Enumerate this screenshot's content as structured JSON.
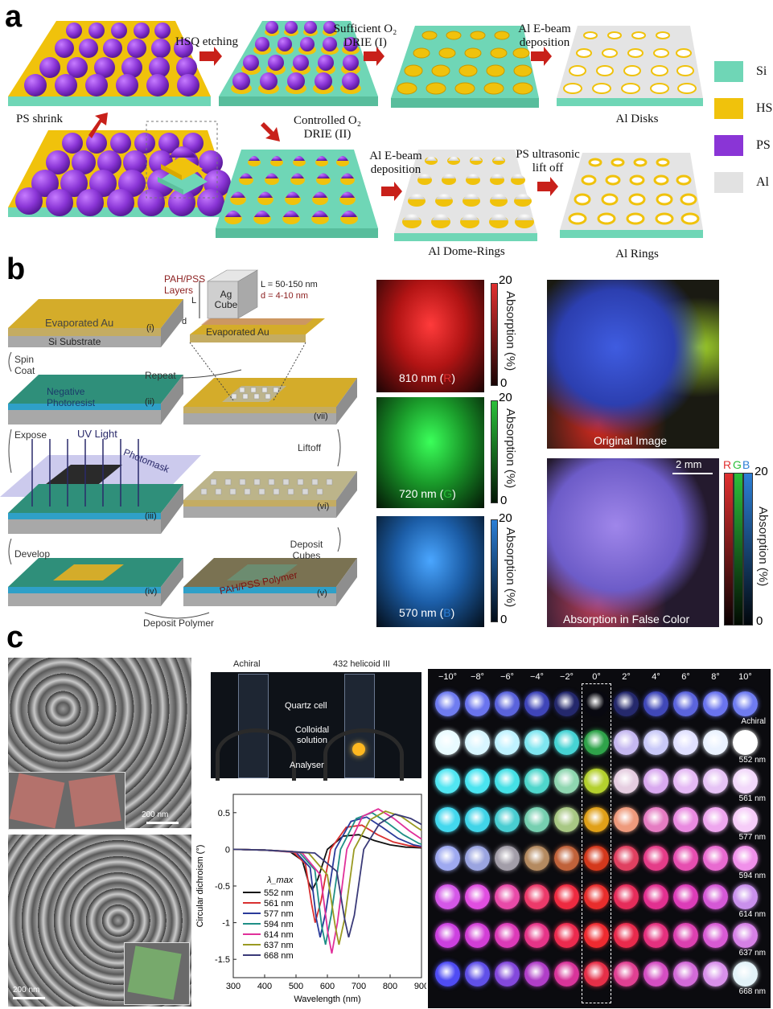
{
  "panel_a": {
    "label": "a",
    "steps": {
      "hsq_etching": "HSQ etching",
      "sufficient": "Sufficient O₂ DRIE (I)",
      "al_ebeam_top": "Al E-beam deposition",
      "ps_shrink": "PS shrink",
      "controlled": "Controlled O₂ DRIE (II)",
      "al_ebeam_bottom": "Al E-beam deposition",
      "ps_liftoff": "PS ultrasonic lift off"
    },
    "results": {
      "al_disks": "Al Disks",
      "al_dome_rings": "Al Dome-Rings",
      "al_rings": "Al Rings"
    },
    "legend": [
      {
        "label": "Si",
        "color": "#6fd6b6"
      },
      {
        "label": "HSQ",
        "color": "#f0c20c"
      },
      {
        "label": "PS",
        "color": "#8a35d6"
      },
      {
        "label": "Al",
        "color": "#e2e2e2"
      }
    ]
  },
  "panel_b": {
    "label": "b",
    "steps": {
      "i_top": "Evaporated Au",
      "i_bottom": "Si Substrate",
      "i_num": "(i)",
      "spin_coat": "Spin Coat",
      "ii_text": "Negative Photoresist",
      "ii_num": "(ii)",
      "expose": "Expose",
      "uv_light": "UV Light",
      "photomask": "Photomask",
      "iii_num": "(iii)",
      "develop": "Develop",
      "iv_num": "(iv)",
      "deposit_polymer": "Deposit Polymer",
      "v_text": "PAH/PSS Polymer",
      "v_num": "(v)",
      "deposit_cubes": "Deposit Cubes",
      "vi_num": "(vi)",
      "liftoff": "Liftoff",
      "vii_num": "(vii)",
      "repeat": "Repeat",
      "pah_layers": "PAH/PSS Layers",
      "ag_cube": "Ag Cube",
      "L_eq": "L = 50-150 nm",
      "d_eq": "d = 4-10 nm",
      "L": "L",
      "d": "d",
      "evaporated_au_zoom": "Evaporated Au"
    },
    "images": [
      {
        "caption": "810 nm (",
        "band": "R",
        "color": "#e03030"
      },
      {
        "caption": "720 nm (",
        "band": "G",
        "color": "#2bbf3a"
      },
      {
        "caption": "570 nm (",
        "band": "B",
        "color": "#2c7fd6"
      }
    ],
    "colorbar": {
      "max": "20",
      "min": "0",
      "label": "Absorption (%)"
    },
    "original_image": "Original Image",
    "false_color": "Absorption in False Color",
    "scale": "2 mm",
    "rgb": [
      "R",
      "G",
      "B"
    ]
  },
  "panel_c": {
    "label": "c",
    "sem_scale_top": "200 nm",
    "sem_scale_bottom": "200 nm",
    "photo": {
      "achiral": "Achiral",
      "helicoid": "432 helicoid III",
      "quartz_cell": "Quartz cell",
      "colloidal": "Colloidal solution",
      "analyser": "Analyser"
    },
    "grid": {
      "angles": [
        "−10°",
        "−8°",
        "−6°",
        "−4°",
        "−2°",
        "0°",
        "2°",
        "4°",
        "6°",
        "8°",
        "10°"
      ],
      "rows": [
        {
          "label": "Achiral",
          "colors": [
            "#6f7cf0",
            "#6a74ee",
            "#5a63dc",
            "#3f45b8",
            "#24286c",
            "#080810",
            "#25296c",
            "#4048b8",
            "#5b64dc",
            "#6a74ee",
            "#6f7cf0"
          ]
        },
        {
          "label": "552 nm",
          "colors": [
            "#e9fbff",
            "#d8f6ff",
            "#bff2ff",
            "#7fe6f0",
            "#46d3d4",
            "#2fa34a",
            "#c5b8f0",
            "#c9c9f8",
            "#e0e0ff",
            "#eaf2ff",
            "#ffffff"
          ]
        },
        {
          "label": "561 nm",
          "colors": [
            "#52e6f2",
            "#4ae4f0",
            "#45e0e6",
            "#4fd6cc",
            "#8fd6b0",
            "#b4d02e",
            "#e5cde0",
            "#d9a9ef",
            "#e5b9f4",
            "#e6c3f5",
            "#f2d8fa"
          ]
        },
        {
          "label": "577 nm",
          "colors": [
            "#43d8ee",
            "#41d4e8",
            "#49cdd2",
            "#76cfb0",
            "#a8c784",
            "#e0a018",
            "#ee9a7c",
            "#e57cc2",
            "#e98ae0",
            "#eea6ee",
            "#f6ccf8"
          ]
        },
        {
          "label": "594 nm",
          "colors": [
            "#9ea9f0",
            "#9aa4e0",
            "#a29da8",
            "#b48a60",
            "#c0623a",
            "#d4381c",
            "#e04060",
            "#e43c88",
            "#e64eb0",
            "#e86ad0",
            "#f090ea"
          ]
        },
        {
          "label": "614 nm",
          "colors": [
            "#d457e8",
            "#e04ee0",
            "#e84aa8",
            "#ec3a6a",
            "#ee2a40",
            "#e82d2c",
            "#e62c5a",
            "#e23090",
            "#dc3cb8",
            "#d458d6",
            "#c990ec"
          ]
        },
        {
          "label": "637 nm",
          "colors": [
            "#cc40e0",
            "#d23ed6",
            "#dc3ab8",
            "#e63488",
            "#ec2a4e",
            "#ee2a30",
            "#e82a4c",
            "#e4307e",
            "#dc40b0",
            "#d85ad4",
            "#d680e6"
          ]
        },
        {
          "label": "668 nm",
          "colors": [
            "#4f4cf4",
            "#6050e8",
            "#8348dc",
            "#b03ec8",
            "#d8349a",
            "#e52f48",
            "#e04092",
            "#d44ec2",
            "#d26ad8",
            "#d890ea",
            "#e2f2f8"
          ]
        }
      ]
    },
    "chart_data": {
      "type": "line",
      "xlabel": "Wavelength (nm)",
      "ylabel": "Circular dichroism (°)",
      "xlim": [
        300,
        900
      ],
      "ylim": [
        -1.75,
        0.75
      ],
      "xticks": [
        300,
        400,
        500,
        600,
        700,
        800,
        900
      ],
      "yticks": [
        -1.5,
        -1.0,
        -0.5,
        0,
        0.5
      ],
      "legend_title": "λ_max",
      "series": [
        {
          "name": "552 nm",
          "color": "#111111",
          "x": [
            300,
            400,
            480,
            520,
            540,
            552,
            570,
            600,
            650,
            700,
            750,
            800,
            850,
            900
          ],
          "y": [
            0.0,
            -0.01,
            -0.03,
            -0.15,
            -0.45,
            -0.55,
            -0.4,
            0.0,
            0.18,
            0.2,
            0.12,
            0.06,
            0.03,
            0.02
          ]
        },
        {
          "name": "561 nm",
          "color": "#d93030",
          "x": [
            300,
            400,
            490,
            530,
            550,
            561,
            580,
            610,
            660,
            710,
            760,
            810,
            860,
            900
          ],
          "y": [
            0.0,
            -0.01,
            -0.03,
            -0.2,
            -0.75,
            -1.0,
            -0.7,
            0.0,
            0.3,
            0.33,
            0.2,
            0.1,
            0.05,
            0.03
          ]
        },
        {
          "name": "577 nm",
          "color": "#2a3b9a",
          "x": [
            300,
            400,
            500,
            545,
            565,
            577,
            595,
            625,
            675,
            725,
            775,
            825,
            875,
            900
          ],
          "y": [
            0.0,
            -0.01,
            -0.04,
            -0.25,
            -0.95,
            -1.2,
            -0.85,
            0.0,
            0.38,
            0.44,
            0.3,
            0.15,
            0.06,
            0.04
          ]
        },
        {
          "name": "594 nm",
          "color": "#1f8f86",
          "x": [
            300,
            400,
            510,
            560,
            582,
            594,
            612,
            642,
            692,
            742,
            792,
            842,
            892,
            900
          ],
          "y": [
            0.0,
            -0.01,
            -0.04,
            -0.28,
            -1.05,
            -1.3,
            -0.9,
            0.0,
            0.42,
            0.5,
            0.36,
            0.2,
            0.08,
            0.07
          ]
        },
        {
          "name": "614 nm",
          "color": "#e0309a",
          "x": [
            300,
            400,
            520,
            578,
            602,
            614,
            632,
            662,
            712,
            762,
            812,
            862,
            900
          ],
          "y": [
            0.0,
            -0.01,
            -0.05,
            -0.35,
            -1.15,
            -1.42,
            -1.0,
            0.0,
            0.45,
            0.55,
            0.42,
            0.25,
            0.14
          ]
        },
        {
          "name": "637 nm",
          "color": "#9a9a22",
          "x": [
            300,
            400,
            540,
            600,
            625,
            637,
            655,
            685,
            735,
            785,
            835,
            885,
            900
          ],
          "y": [
            0.0,
            -0.01,
            -0.05,
            -0.35,
            -1.05,
            -1.3,
            -0.95,
            0.0,
            0.4,
            0.52,
            0.45,
            0.3,
            0.26
          ]
        },
        {
          "name": "668 nm",
          "color": "#3a3a78",
          "x": [
            300,
            400,
            560,
            630,
            655,
            668,
            686,
            716,
            766,
            816,
            866,
            900
          ],
          "y": [
            0.0,
            -0.01,
            -0.05,
            -0.3,
            -0.95,
            -1.2,
            -0.9,
            0.0,
            0.35,
            0.48,
            0.42,
            0.34
          ]
        }
      ]
    }
  }
}
